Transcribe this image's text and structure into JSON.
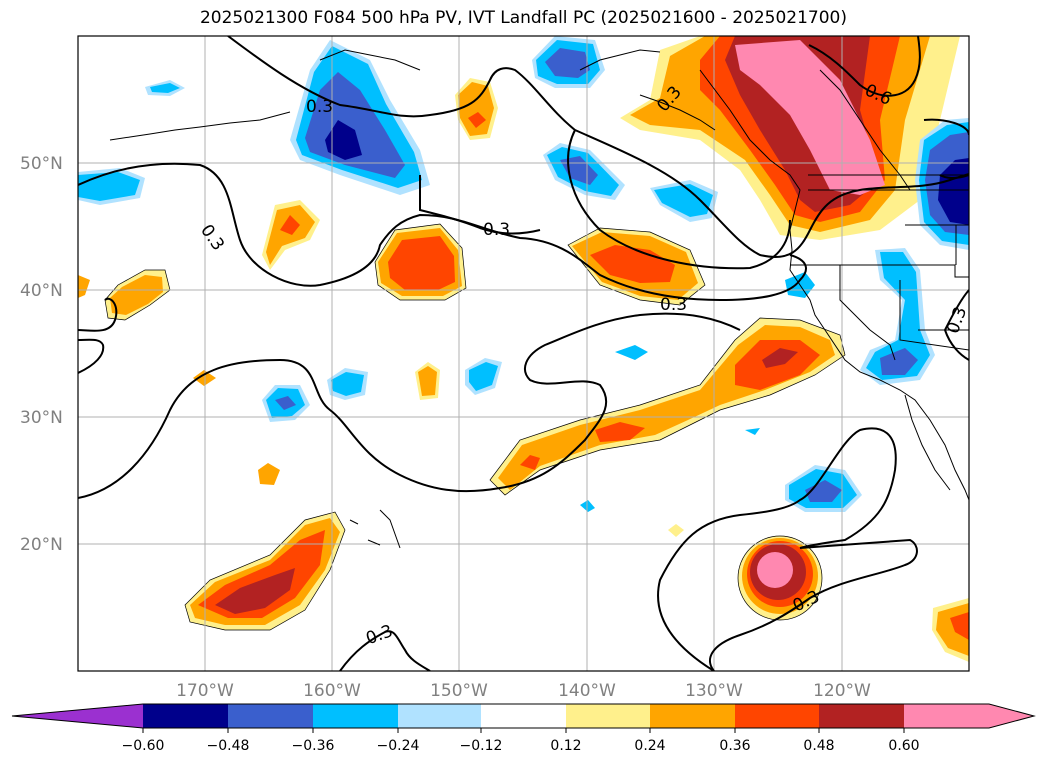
{
  "title": "2025021300 F084 500 hPa PV, IVT Landfall PC (2025021600 - 2025021700)",
  "lat_labels": [
    "50°N",
    "40°N",
    "30°N",
    "20°N"
  ],
  "lon_labels": [
    "170°W",
    "160°W",
    "150°W",
    "140°W",
    "130°W",
    "120°W"
  ],
  "contour_labels": [
    "0.3",
    "0.3",
    "0.3",
    "0.3",
    "0.3",
    "0.6",
    "0.3",
    "0.3",
    "0.3",
    "0.3",
    "0.6",
    "0.3"
  ],
  "colorbar": {
    "ticks": [
      "−0.60",
      "−0.48",
      "−0.36",
      "−0.24",
      "−0.12",
      "0.12",
      "0.24",
      "0.36",
      "0.48",
      "0.60"
    ],
    "colors": [
      "#9b30d0",
      "#00008b",
      "#3a5fcd",
      "#00bfff",
      "#b0e2ff",
      "#ffffff",
      "#fff08c",
      "#ffa500",
      "#ff4500",
      "#b22222",
      "#ff88b0"
    ]
  },
  "colors": {
    "pink": "#ff88b0",
    "darkred": "#b22222",
    "red": "#ff4500",
    "orange": "#ffa500",
    "yellow": "#fff08c",
    "lightblue": "#b0e2ff",
    "skyblue": "#00bfff",
    "blue": "#3a5fcd",
    "navy": "#00008b"
  }
}
